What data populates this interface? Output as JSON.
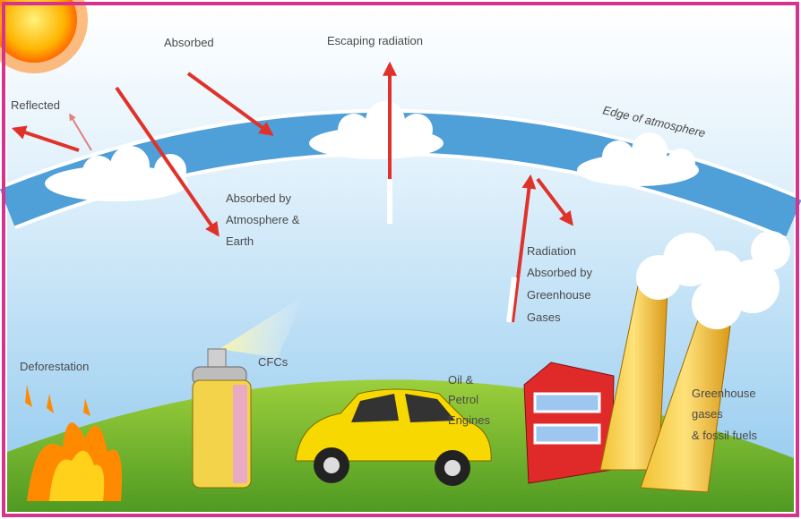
{
  "labels": {
    "absorbed": "Absorbed",
    "escaping_radiation": "Escaping radiation",
    "reflected": "Reflected",
    "edge_of_atmosphere": "Edge of atmosphere",
    "absorbed_by_atmosphere_earth": [
      "Absorbed by",
      "Atmosphere &",
      "Earth"
    ],
    "radiation_absorbed_by_greenhouse_gases": [
      "Radiation",
      "Absorbed by",
      "Greenhouse",
      "Gases"
    ],
    "deforestation": "Deforestation",
    "cfcs": "CFCs",
    "oil_petrol_engines": [
      "Oil &",
      "Petrol",
      "Engines"
    ],
    "greenhouse_gases_fossil_fuels": [
      "Greenhouse",
      "gases",
      "& fossil fuels"
    ]
  }
}
